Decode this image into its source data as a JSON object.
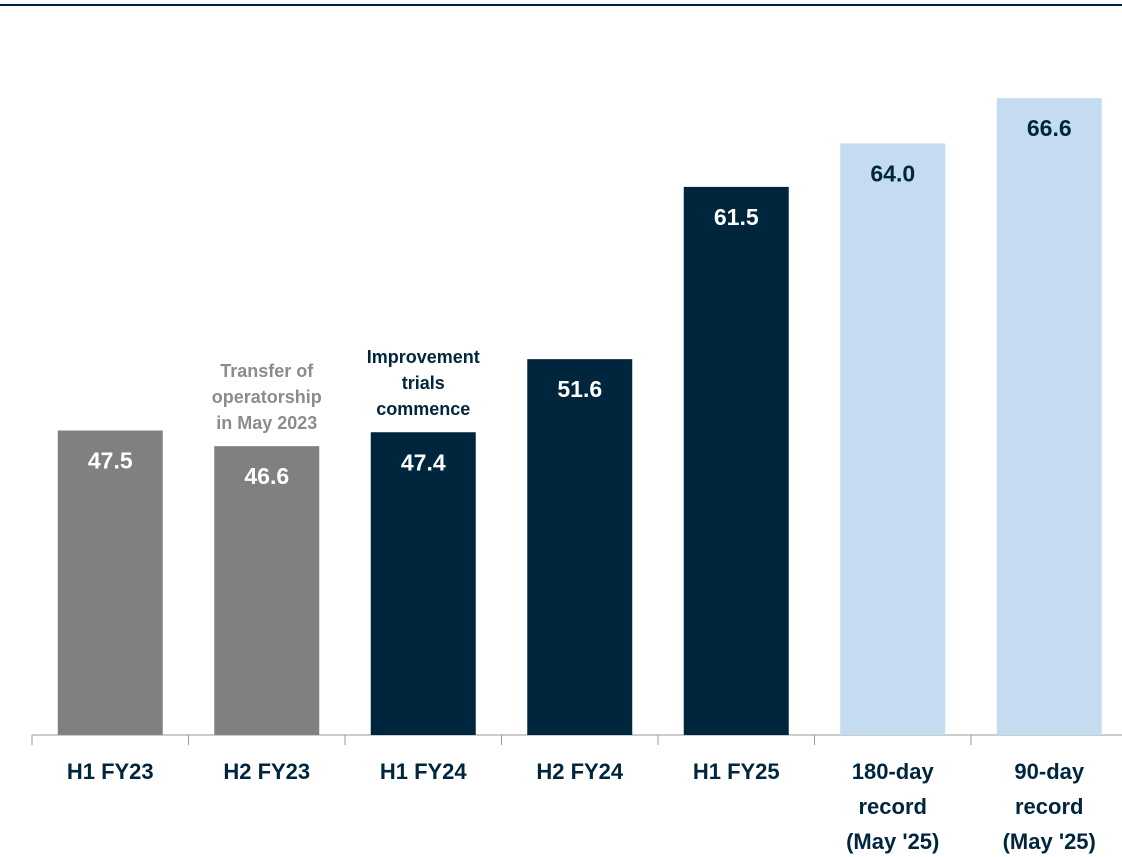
{
  "chart_data": {
    "type": "bar",
    "categories": [
      [
        "H1 FY23"
      ],
      [
        "H2 FY23"
      ],
      [
        "H1 FY24"
      ],
      [
        "H2 FY24"
      ],
      [
        "H1 FY25"
      ],
      [
        "180-day",
        "record",
        "(May '25)"
      ],
      [
        "90-day",
        "record",
        "(May '25)"
      ]
    ],
    "values": [
      47.5,
      46.6,
      47.4,
      51.6,
      61.5,
      64.0,
      66.6
    ],
    "value_labels": [
      "47.5",
      "46.6",
      "47.4",
      "51.6",
      "61.5",
      "64.0",
      "66.6"
    ],
    "colors": [
      "#808080",
      "#808080",
      "#00263e",
      "#00263e",
      "#00263e",
      "#c5dcf0",
      "#c5dcf0"
    ],
    "label_colors": [
      "#ffffff",
      "#ffffff",
      "#ffffff",
      "#ffffff",
      "#ffffff",
      "#00263e",
      "#00263e"
    ],
    "annotations": [
      {
        "lines": [
          "Transfer of",
          "operatorship",
          "in May 2023"
        ],
        "color": "#8c8c8c"
      },
      {
        "lines": [
          "Improvement",
          "trials",
          "commence"
        ],
        "color": "#00263e"
      }
    ],
    "ylim": [
      30,
      70
    ]
  }
}
